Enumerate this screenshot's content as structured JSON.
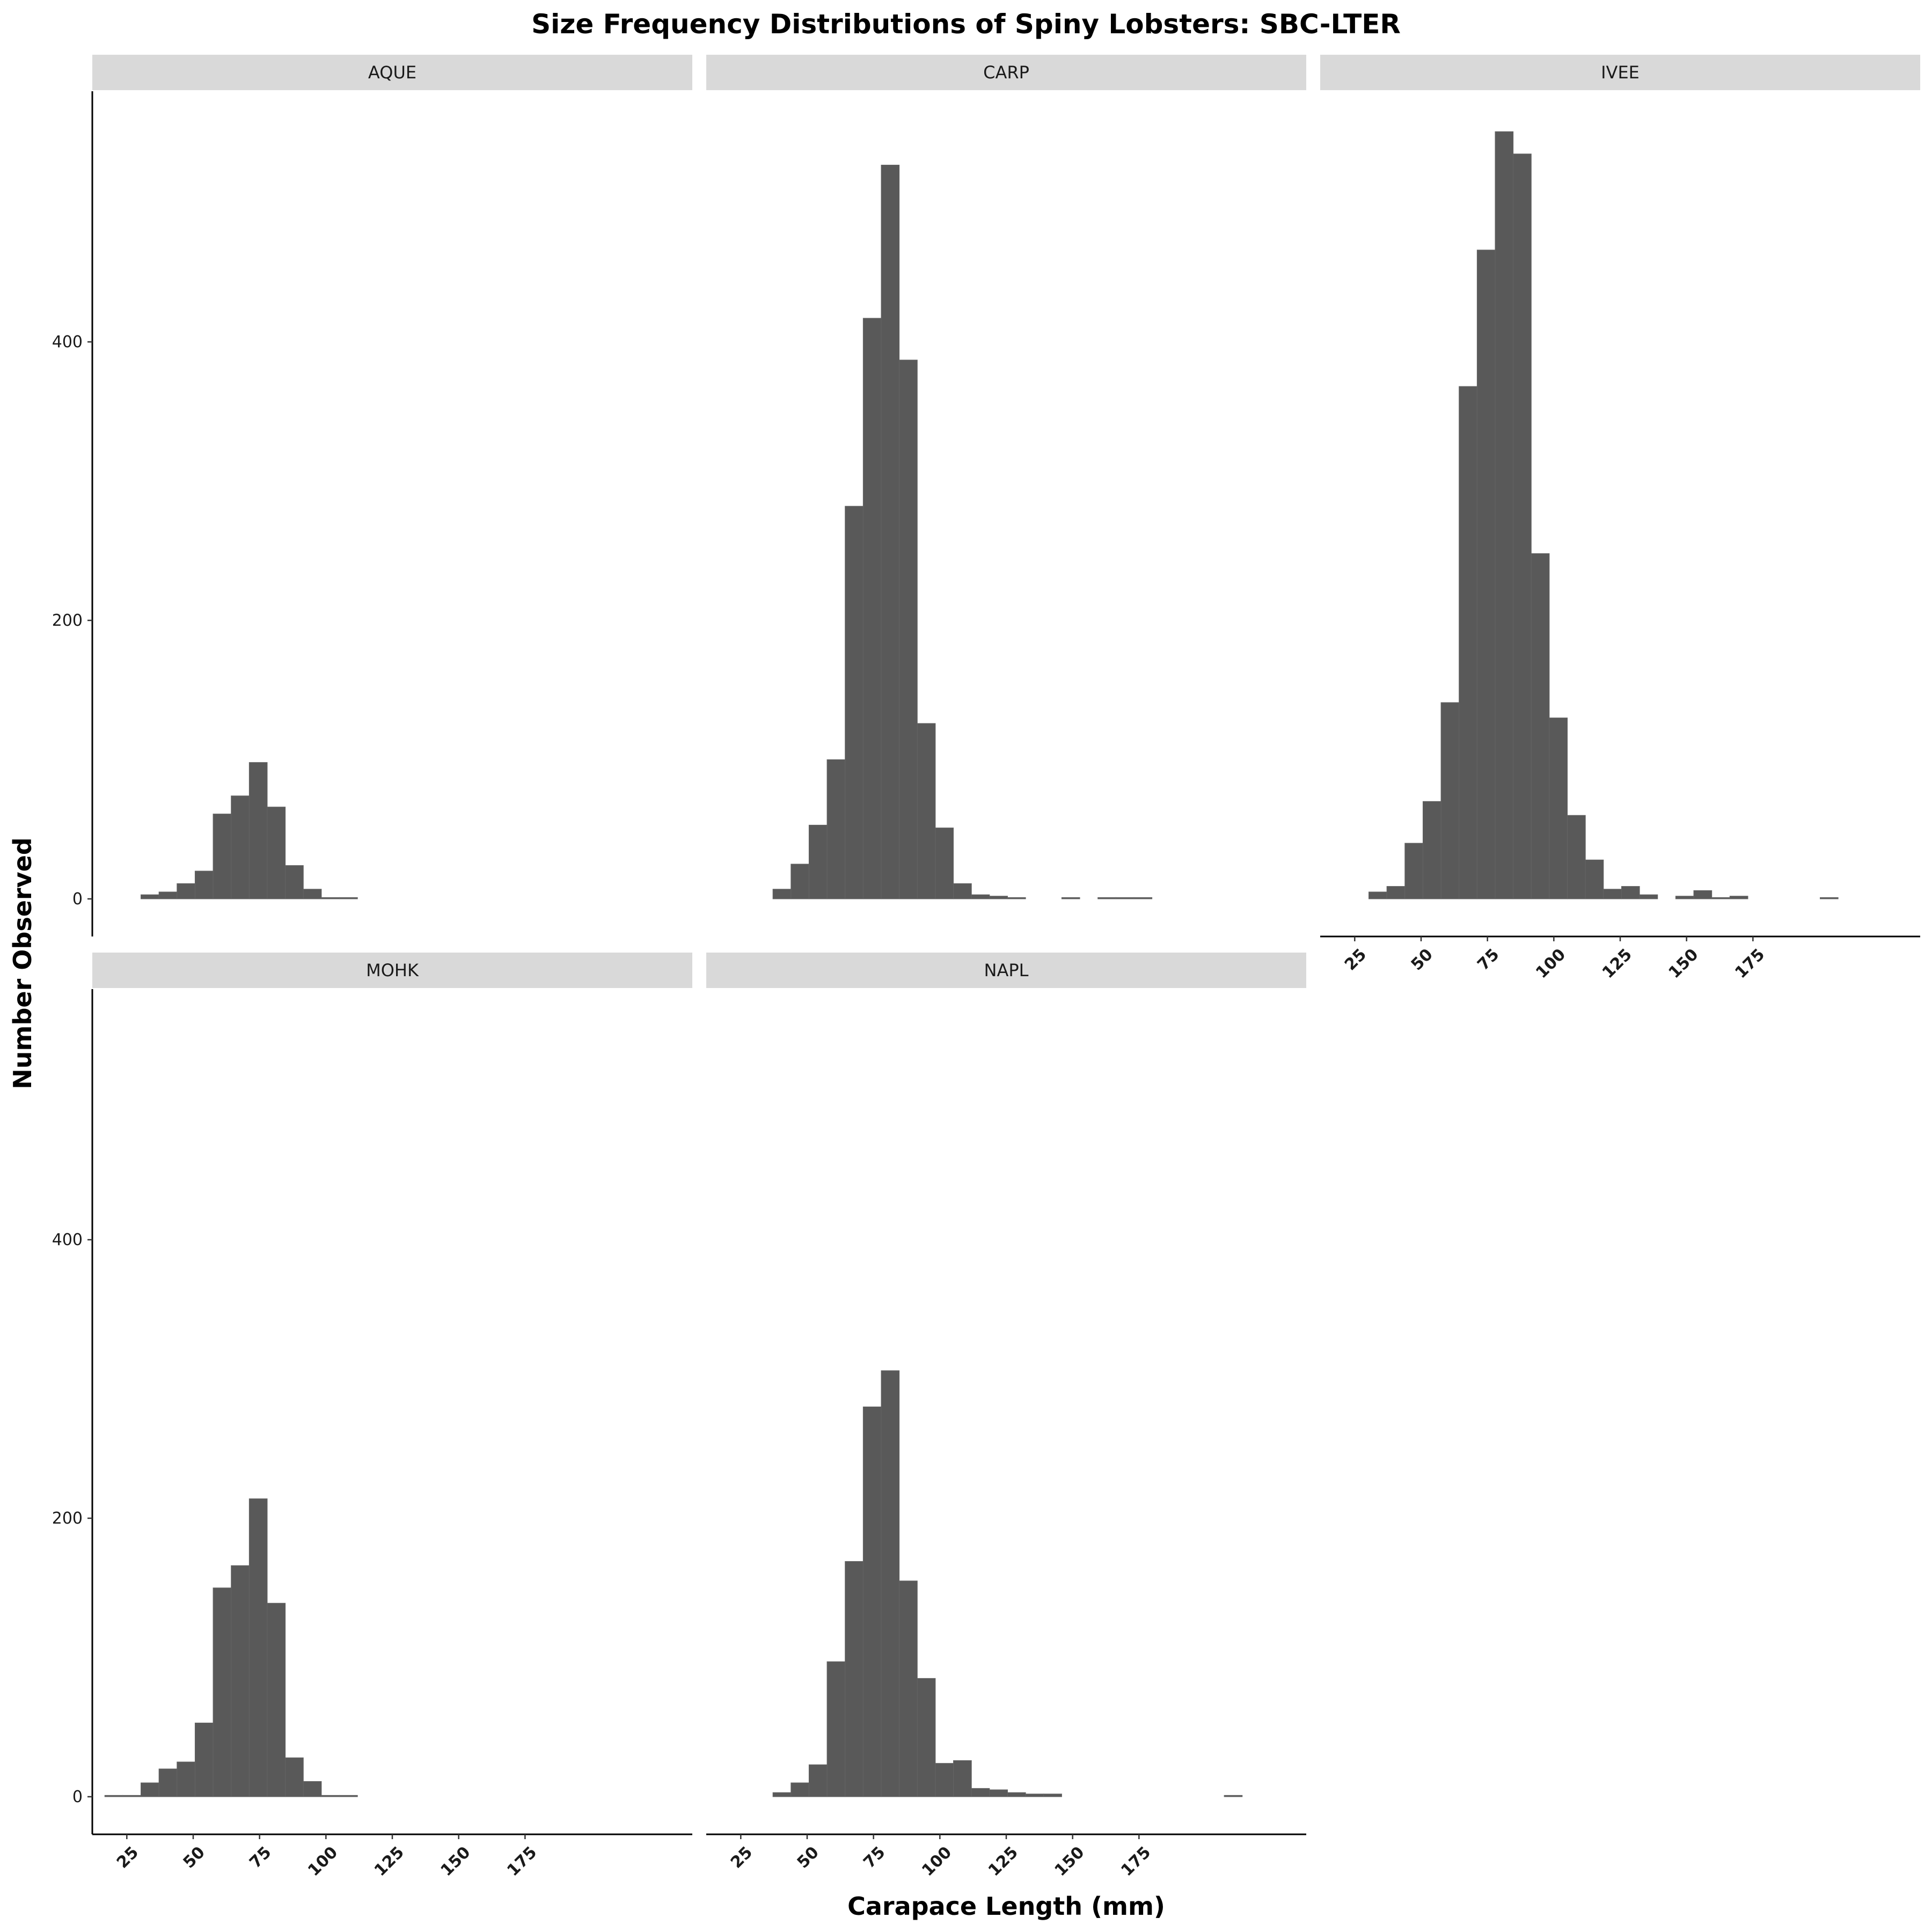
{
  "chart_data": {
    "type": "bar",
    "title": "Size Frequency Distributions of Spiny Lobsters: SBC-LTER",
    "xlabel": "Carapace Length (mm)",
    "ylabel": "Number Observed",
    "xlim": [
      12,
      238
    ],
    "ylim": [
      -27,
      580
    ],
    "x_ticks": [
      25,
      50,
      75,
      100,
      125,
      150,
      175
    ],
    "y_ticks": [
      0,
      200,
      400
    ],
    "bin_width": 6.8,
    "bar_color": "#595959",
    "strip_color": "#d9d9d9",
    "facets": [
      {
        "name": "AQUE",
        "bins": [
          {
            "x": 33.7,
            "count": 3
          },
          {
            "x": 40.5,
            "count": 5
          },
          {
            "x": 47.3,
            "count": 11
          },
          {
            "x": 54.1,
            "count": 20
          },
          {
            "x": 60.9,
            "count": 61
          },
          {
            "x": 67.7,
            "count": 74
          },
          {
            "x": 74.5,
            "count": 98
          },
          {
            "x": 81.3,
            "count": 66
          },
          {
            "x": 88.1,
            "count": 24
          },
          {
            "x": 94.9,
            "count": 7
          },
          {
            "x": 101.7,
            "count": 1
          },
          {
            "x": 108.5,
            "count": 1
          }
        ]
      },
      {
        "name": "CARP",
        "bins": [
          {
            "x": 40.5,
            "count": 7
          },
          {
            "x": 47.3,
            "count": 25
          },
          {
            "x": 54.1,
            "count": 53
          },
          {
            "x": 60.9,
            "count": 100
          },
          {
            "x": 67.7,
            "count": 282
          },
          {
            "x": 74.5,
            "count": 417
          },
          {
            "x": 81.3,
            "count": 527
          },
          {
            "x": 88.1,
            "count": 387
          },
          {
            "x": 94.9,
            "count": 126
          },
          {
            "x": 101.7,
            "count": 51
          },
          {
            "x": 108.5,
            "count": 11
          },
          {
            "x": 115.3,
            "count": 3
          },
          {
            "x": 122.1,
            "count": 2
          },
          {
            "x": 128.9,
            "count": 1
          },
          {
            "x": 149.3,
            "count": 1
          },
          {
            "x": 162.9,
            "count": 1
          },
          {
            "x": 169.7,
            "count": 1
          },
          {
            "x": 176.5,
            "count": 1
          }
        ]
      },
      {
        "name": "IVEE",
        "bins": [
          {
            "x": 33.7,
            "count": 5
          },
          {
            "x": 40.5,
            "count": 9
          },
          {
            "x": 47.3,
            "count": 40
          },
          {
            "x": 54.1,
            "count": 70
          },
          {
            "x": 60.9,
            "count": 141
          },
          {
            "x": 67.7,
            "count": 368
          },
          {
            "x": 74.5,
            "count": 466
          },
          {
            "x": 81.3,
            "count": 551
          },
          {
            "x": 88.1,
            "count": 535
          },
          {
            "x": 94.9,
            "count": 248
          },
          {
            "x": 101.7,
            "count": 130
          },
          {
            "x": 108.5,
            "count": 60
          },
          {
            "x": 115.3,
            "count": 28
          },
          {
            "x": 122.1,
            "count": 7
          },
          {
            "x": 128.9,
            "count": 9
          },
          {
            "x": 135.7,
            "count": 3
          },
          {
            "x": 149.3,
            "count": 2
          },
          {
            "x": 156.1,
            "count": 6
          },
          {
            "x": 162.9,
            "count": 1
          },
          {
            "x": 169.7,
            "count": 2
          },
          {
            "x": 203.7,
            "count": 1
          }
        ]
      },
      {
        "name": "MOHK",
        "bins": [
          {
            "x": 20.1,
            "count": 1
          },
          {
            "x": 26.9,
            "count": 1
          },
          {
            "x": 33.7,
            "count": 10
          },
          {
            "x": 40.5,
            "count": 20
          },
          {
            "x": 47.3,
            "count": 25
          },
          {
            "x": 54.1,
            "count": 53
          },
          {
            "x": 60.9,
            "count": 150
          },
          {
            "x": 67.7,
            "count": 166
          },
          {
            "x": 74.5,
            "count": 214
          },
          {
            "x": 81.3,
            "count": 139
          },
          {
            "x": 88.1,
            "count": 28
          },
          {
            "x": 94.9,
            "count": 11
          },
          {
            "x": 101.7,
            "count": 1
          },
          {
            "x": 108.5,
            "count": 1
          }
        ]
      },
      {
        "name": "NAPL",
        "bins": [
          {
            "x": 40.5,
            "count": 3
          },
          {
            "x": 47.3,
            "count": 10
          },
          {
            "x": 54.1,
            "count": 23
          },
          {
            "x": 60.9,
            "count": 97
          },
          {
            "x": 67.7,
            "count": 169
          },
          {
            "x": 74.5,
            "count": 280
          },
          {
            "x": 81.3,
            "count": 306
          },
          {
            "x": 88.1,
            "count": 155
          },
          {
            "x": 94.9,
            "count": 85
          },
          {
            "x": 101.7,
            "count": 24
          },
          {
            "x": 108.5,
            "count": 26
          },
          {
            "x": 115.3,
            "count": 6
          },
          {
            "x": 122.1,
            "count": 5
          },
          {
            "x": 128.9,
            "count": 3
          },
          {
            "x": 135.7,
            "count": 2
          },
          {
            "x": 142.5,
            "count": 2
          },
          {
            "x": 210.5,
            "count": 1
          }
        ]
      }
    ]
  }
}
